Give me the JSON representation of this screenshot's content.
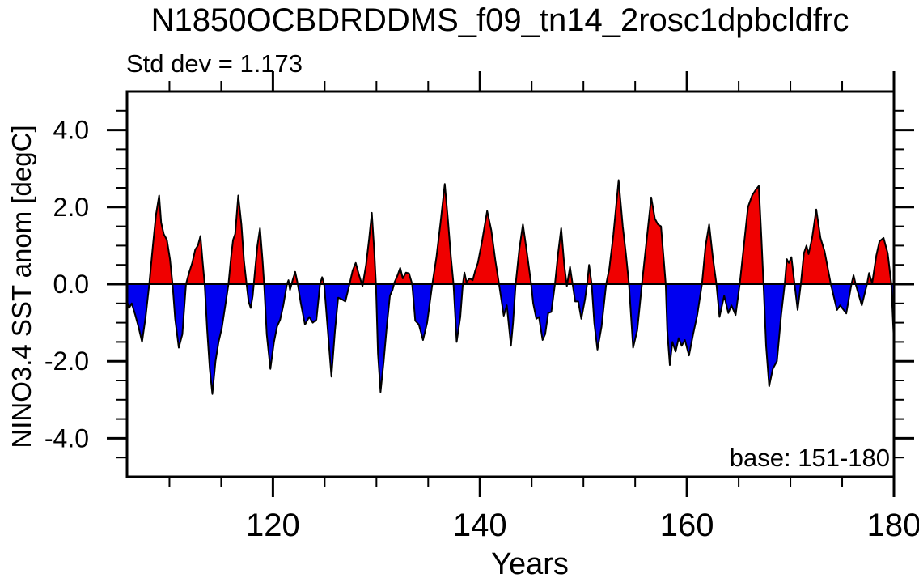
{
  "title": "N1850OCBDRDDMS_f09_tn14_2rosc1dpbcldfrc",
  "annotations": {
    "std_dev": "Std dev = 1.173",
    "base": "base: 151-180"
  },
  "chart_data": {
    "type": "area",
    "title": "N1850OCBDRDDMS_f09_tn14_2rosc1dpbcldfrc",
    "xlabel": "Years",
    "ylabel": "NINO3.4 SST anom [degC]",
    "xlim": [
      105.9,
      180
    ],
    "ylim": [
      -5,
      5
    ],
    "grid": false,
    "x_major_ticks": [
      120,
      140,
      160,
      180
    ],
    "x_tick_labels": [
      "120",
      "140",
      "160",
      "180"
    ],
    "x_minor_ticks": [
      110,
      115,
      125,
      130,
      135,
      145,
      150,
      155,
      165,
      170,
      175
    ],
    "y_major_ticks": [
      -4,
      -2,
      0,
      2,
      4
    ],
    "y_tick_labels": [
      "-4.0",
      "-2.0",
      "0.0",
      "2.0",
      "4.0"
    ],
    "y_minor_ticks": [
      -4.5,
      -3.5,
      -3,
      -2.5,
      -1.5,
      -1,
      -0.5,
      0.5,
      1,
      1.5,
      2.5,
      3,
      3.5,
      4.5
    ],
    "colors": {
      "positive_fill": "#f00000",
      "negative_fill": "#0000f0",
      "line": "#000000",
      "zero_line": "#000000"
    },
    "series": [
      {
        "name": "NINO3.4 SST anomaly",
        "x": [
          105.9,
          106.1,
          106.35,
          106.7,
          107.0,
          107.35,
          107.7,
          108.05,
          108.4,
          108.7,
          109.0,
          109.2,
          109.45,
          109.75,
          110.05,
          110.3,
          110.55,
          110.9,
          111.25,
          111.6,
          111.9,
          112.2,
          112.5,
          112.75,
          113.0,
          113.2,
          113.4,
          113.65,
          113.9,
          114.15,
          114.45,
          114.75,
          115.05,
          115.4,
          115.7,
          115.95,
          116.15,
          116.35,
          116.65,
          116.95,
          117.2,
          117.45,
          117.65,
          117.85,
          118.05,
          118.25,
          118.5,
          118.75,
          119.0,
          119.15,
          119.4,
          119.75,
          120.1,
          120.4,
          120.7,
          121.0,
          121.35,
          121.5,
          121.65,
          121.9,
          122.15,
          122.4,
          122.7,
          123.1,
          123.5,
          123.85,
          124.2,
          124.55,
          124.75,
          124.95,
          125.3,
          125.65,
          126.0,
          126.3,
          126.7,
          127.0,
          127.4,
          127.7,
          128.0,
          128.3,
          128.65,
          129.0,
          129.3,
          129.55,
          129.8,
          129.95,
          130.15,
          130.4,
          130.7,
          131.0,
          131.3,
          131.55,
          131.75,
          132.0,
          132.3,
          132.55,
          132.85,
          133.15,
          133.45,
          133.75,
          134.1,
          134.5,
          134.9,
          135.4,
          135.8,
          136.2,
          136.6,
          136.9,
          137.2,
          137.45,
          137.75,
          138.1,
          138.35,
          138.5,
          138.7,
          139.0,
          139.3,
          139.55,
          139.8,
          140.2,
          140.7,
          141.1,
          141.5,
          141.85,
          142.3,
          142.6,
          143.0,
          143.2,
          143.45,
          143.8,
          144.15,
          144.5,
          144.95,
          145.15,
          145.45,
          145.7,
          146.05,
          146.3,
          146.6,
          146.9,
          147.25,
          147.55,
          147.85,
          148.15,
          148.4,
          148.7,
          148.95,
          149.2,
          149.5,
          149.8,
          150.15,
          150.35,
          150.55,
          150.8,
          151.05,
          151.35,
          151.75,
          152.2,
          152.5,
          152.9,
          153.4,
          153.8,
          154.1,
          154.4,
          154.8,
          155.2,
          155.65,
          156.05,
          156.55,
          156.9,
          157.2,
          157.5,
          157.8,
          157.95,
          158.1,
          158.35,
          158.6,
          158.9,
          159.2,
          159.5,
          159.8,
          160.2,
          160.6,
          161.0,
          161.45,
          161.8,
          162.15,
          162.5,
          162.85,
          163.15,
          163.6,
          164.0,
          164.3,
          164.7,
          165.1,
          165.5,
          165.9,
          166.3,
          166.65,
          166.95,
          167.2,
          167.4,
          167.65,
          167.95,
          168.3,
          168.7,
          169.1,
          169.45,
          169.65,
          169.85,
          170.1,
          170.4,
          170.7,
          171.0,
          171.3,
          171.55,
          171.75,
          172.1,
          172.5,
          172.9,
          173.3,
          173.9,
          174.5,
          174.8,
          175.4,
          175.9,
          176.1,
          176.3,
          176.9,
          177.4,
          177.6,
          177.9,
          178.3,
          178.6,
          179.0,
          179.4,
          179.75,
          180.0
        ],
        "y": [
          -0.45,
          -0.62,
          -0.5,
          -0.8,
          -1.1,
          -1.5,
          -0.85,
          0.0,
          1.0,
          1.8,
          2.3,
          1.6,
          1.3,
          1.15,
          0.65,
          0.0,
          -0.9,
          -1.65,
          -1.3,
          0.0,
          0.3,
          0.55,
          0.9,
          1.0,
          1.25,
          0.6,
          0.0,
          -1.2,
          -2.2,
          -2.85,
          -2.0,
          -1.5,
          -1.15,
          -0.55,
          0.0,
          0.7,
          1.15,
          1.3,
          2.3,
          1.55,
          0.6,
          0.0,
          -0.45,
          -0.62,
          -0.3,
          0.3,
          1.0,
          1.45,
          0.6,
          0.0,
          -1.3,
          -2.2,
          -1.5,
          -1.1,
          -0.92,
          -0.55,
          0.0,
          0.1,
          -0.15,
          0.1,
          0.32,
          0.0,
          -0.5,
          -1.05,
          -0.85,
          -1.0,
          -0.92,
          0.0,
          0.18,
          0.0,
          -1.2,
          -2.4,
          -1.2,
          -0.35,
          -0.4,
          -0.45,
          0.0,
          0.35,
          0.55,
          0.25,
          -0.05,
          0.5,
          1.2,
          1.85,
          0.8,
          0.0,
          -1.8,
          -2.8,
          -2.0,
          -1.1,
          -0.3,
          -0.15,
          0.05,
          0.2,
          0.42,
          0.15,
          0.3,
          0.28,
          0.0,
          -0.95,
          -1.05,
          -1.45,
          -1.0,
          0.0,
          0.7,
          1.6,
          2.6,
          1.7,
          0.7,
          0.0,
          -1.5,
          -0.85,
          0.0,
          0.3,
          0.05,
          0.15,
          0.1,
          0.35,
          0.55,
          1.1,
          1.9,
          1.4,
          0.6,
          0.0,
          -0.82,
          -0.55,
          -1.6,
          -1.0,
          0.0,
          0.9,
          1.55,
          0.9,
          0.0,
          -0.5,
          -0.9,
          -0.85,
          -1.45,
          -1.3,
          -0.75,
          -0.72,
          0.0,
          0.8,
          1.45,
          0.5,
          -0.05,
          0.45,
          0.0,
          -0.45,
          -0.45,
          -0.9,
          -0.4,
          0.0,
          0.5,
          0.0,
          -1.0,
          -1.7,
          -1.1,
          0.0,
          0.4,
          1.3,
          2.7,
          1.5,
          0.8,
          0.0,
          -1.65,
          -1.2,
          0.0,
          1.0,
          2.25,
          1.7,
          1.55,
          1.5,
          0.5,
          0.0,
          -1.2,
          -2.1,
          -1.5,
          -1.75,
          -1.4,
          -1.6,
          -1.45,
          -1.85,
          -1.3,
          -0.8,
          0.0,
          1.0,
          1.55,
          0.7,
          0.0,
          -0.85,
          -0.3,
          -0.75,
          -0.55,
          -0.8,
          0.0,
          1.0,
          2.0,
          2.3,
          2.45,
          2.55,
          1.2,
          0.0,
          -1.6,
          -2.65,
          -2.2,
          -2.0,
          -0.8,
          0.0,
          0.65,
          0.55,
          0.7,
          0.0,
          -0.67,
          0.0,
          0.8,
          1.0,
          0.78,
          1.2,
          1.94,
          1.2,
          0.85,
          0.0,
          -0.67,
          -0.55,
          -0.76,
          0.0,
          0.23,
          0.0,
          -0.55,
          0.0,
          0.29,
          0.02,
          0.75,
          1.11,
          1.2,
          0.8,
          0.0,
          -1.5
        ]
      }
    ]
  }
}
